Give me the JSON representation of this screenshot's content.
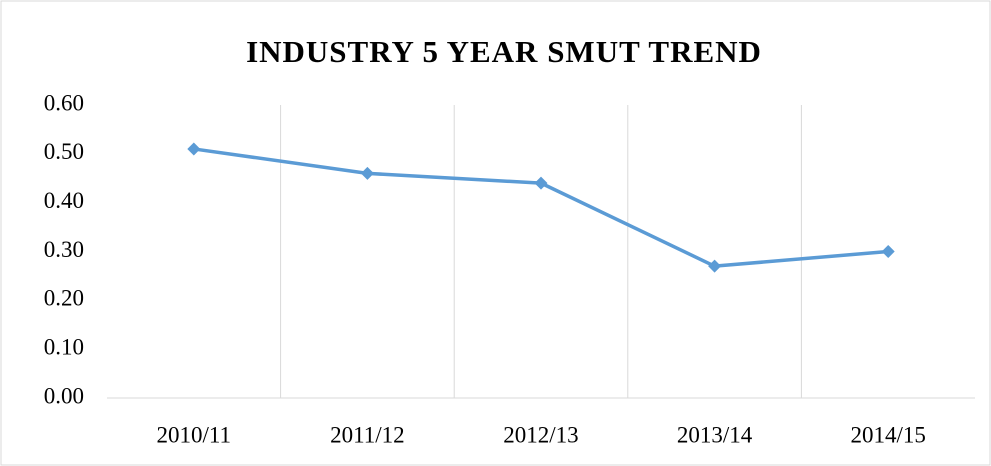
{
  "chart_data": {
    "type": "line",
    "title": "INDUSTRY 5 YEAR SMUT TREND",
    "categories": [
      "2010/11",
      "2011/12",
      "2012/13",
      "2013/14",
      "2014/15"
    ],
    "series": [
      {
        "name": "Smut",
        "color": "#5b9bd5",
        "values": [
          0.51,
          0.46,
          0.44,
          0.27,
          0.3
        ]
      }
    ],
    "ylim": [
      0,
      0.6
    ],
    "yticks": [
      {
        "value": 0,
        "label": "0.00"
      },
      {
        "value": 0.1,
        "label": "0.10"
      },
      {
        "value": 0.2,
        "label": "0.20"
      },
      {
        "value": 0.3,
        "label": "0.30"
      },
      {
        "value": 0.4,
        "label": "0.40"
      },
      {
        "value": 0.5,
        "label": "0.50"
      },
      {
        "value": 0.6,
        "label": "0.60"
      }
    ],
    "xgrid": true,
    "legend": false
  }
}
